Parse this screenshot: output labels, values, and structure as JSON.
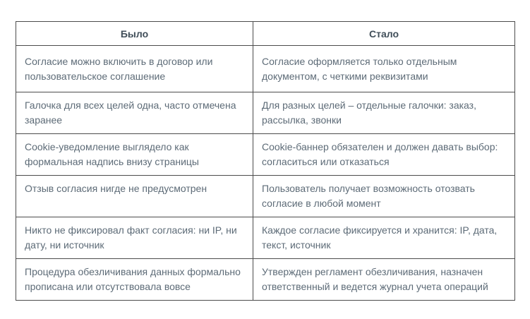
{
  "table": {
    "headers": {
      "was": "Было",
      "became": "Стало"
    },
    "rows": [
      {
        "was": "Согласие можно включить в договор или пользовательское соглашение",
        "became": "Согласие оформляется только отдельным документом, с четкими реквизитами"
      },
      {
        "was": "Галочка для всех целей одна, часто отмечена заранее",
        "became": "Для разных целей – отдельные галочки: заказ, рассылка, звонки"
      },
      {
        "was": "Cookie-уведомление выглядело как формальная надпись внизу страницы",
        "became": "Cookie-баннер обязателен и должен давать выбор: согласиться или отказаться"
      },
      {
        "was": "Отзыв согласия нигде не предусмотрен",
        "became": "Пользователь получает возможность отозвать согласие в любой момент"
      },
      {
        "was": "Никто не фиксировал факт согласия: ни IP, ни дату, ни источник",
        "became": "Каждое согласие фиксируется и хранится: IP, дата, текст, источник"
      },
      {
        "was": "Процедура обезличивания данных формально прописана или отсутствовала вовсе",
        "became": "Утвержден регламент обезличивания, назначен ответственный и ведется журнал учета операций"
      }
    ],
    "colors": {
      "border": "#4c4c4c",
      "header_text": "#404e59",
      "body_text": "#5d6b77",
      "background": "#ffffff"
    }
  }
}
